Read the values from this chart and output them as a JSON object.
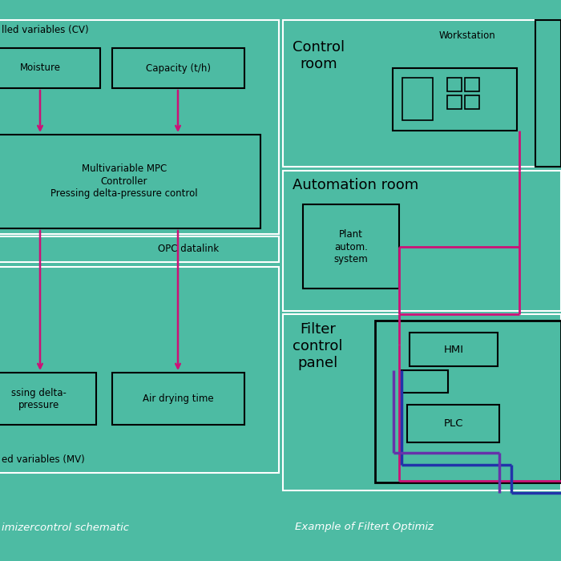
{
  "bg": "#4DBBA3",
  "blk": "#000000",
  "wht": "#ffffff",
  "mag": "#CC1177",
  "blu": "#2233AA",
  "pur": "#6633AA",
  "bottom_left": "imizercontrol schematic",
  "bottom_right": "Example of Filtert Optimiz",
  "lp": {
    "cv_label": "lled variables (CV)",
    "box1": "Moisture",
    "box2": "Capacity (t/h)",
    "ctrl": "Multivariable MPC\nController\nPressing delta-pressure control",
    "opc": "OPC datalink",
    "mv_label": "ed variables (MV)",
    "box3": "ssing delta-\npressure",
    "box4": "Air drying time"
  },
  "rp": {
    "cr": "Control\nroom",
    "ws": "Workstation",
    "ar": "Automation room",
    "pas": "Plant\nautom.\nsystem",
    "fcp": "Filter\ncontrol\npanel",
    "hmi": "HMI",
    "plc": "PLC"
  }
}
